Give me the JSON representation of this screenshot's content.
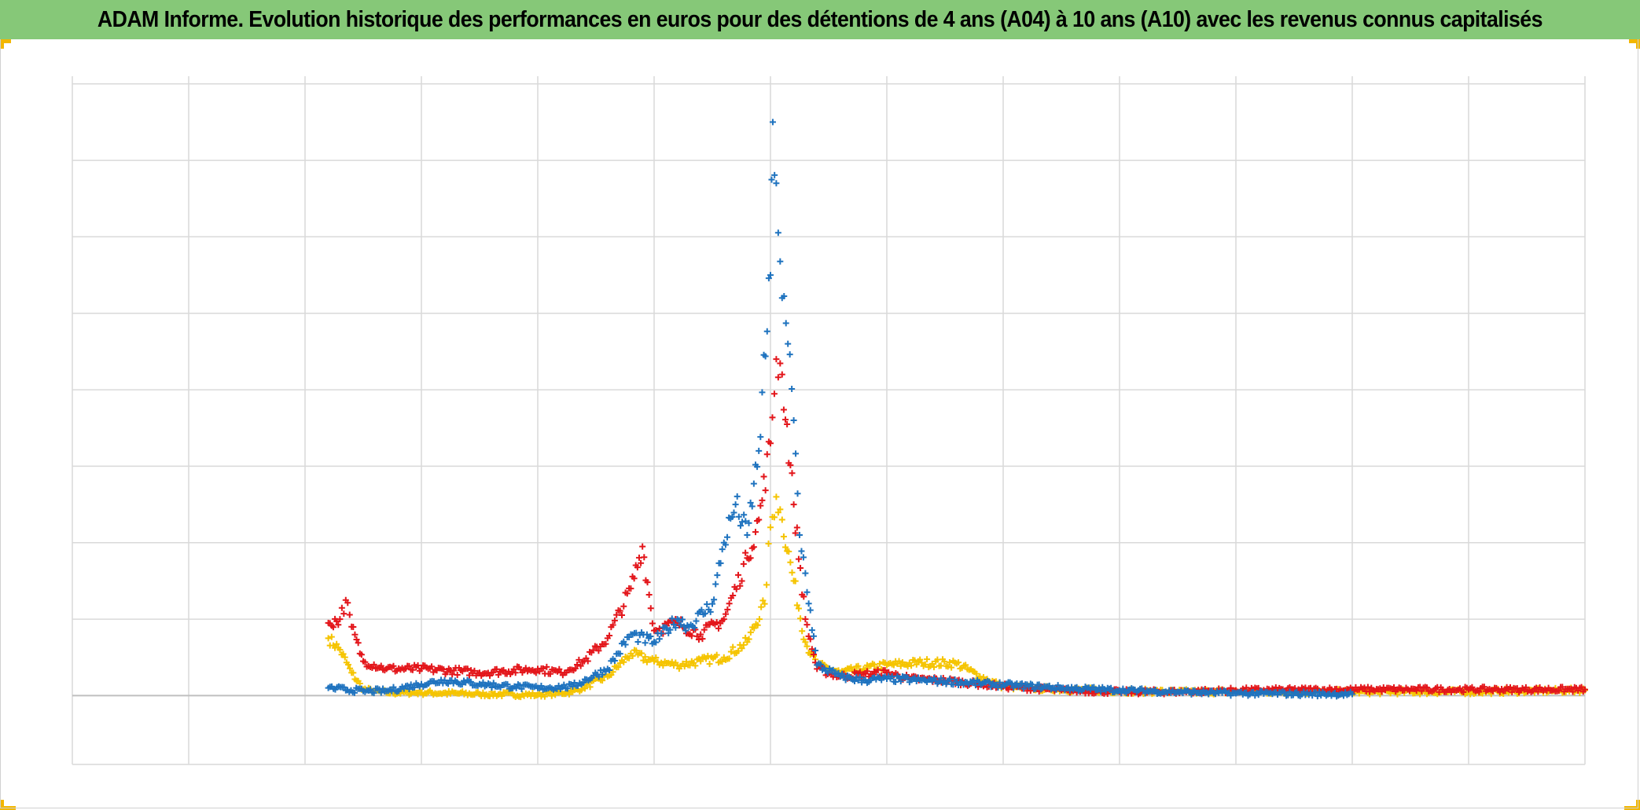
{
  "header": {
    "title": "ADAM Informe. Evolution historique des performances en euros pour des détentions de 4 ans (A04) à 10 ans (A10) avec les revenus connus capitalisés"
  },
  "colors": {
    "title_background": "#86c878",
    "accent_corners": "#f2b700",
    "gridline": "#d9d9d9",
    "zero_line": "#bfbfbf"
  },
  "chart_data": {
    "type": "scatter",
    "title": "ADAM Informe. Evolution historique des performances en euros pour des détentions de 4 ans (A04) à 10 ans (A10) avec les revenus connus capitalisés",
    "marker": "plus",
    "grid": true,
    "legend": "none",
    "axis_labels_visible": false,
    "x_range": [
      0,
      13
    ],
    "y_range": [
      -0.9,
      8.1
    ],
    "x_gridlines": [
      0,
      1,
      2,
      3,
      4,
      5,
      6,
      7,
      8,
      9,
      10,
      11,
      12,
      13
    ],
    "y_gridlines": [
      -0.9,
      0,
      1,
      2,
      3,
      4,
      5,
      6,
      7,
      8
    ],
    "series": [
      {
        "color": "#f5c400",
        "points": [
          [
            2.2,
            0.75
          ],
          [
            2.3,
            0.6
          ],
          [
            2.4,
            0.3
          ],
          [
            2.5,
            0.08
          ],
          [
            2.7,
            0.04
          ],
          [
            3.0,
            0.04
          ],
          [
            3.5,
            0.02
          ],
          [
            4.0,
            0.01
          ],
          [
            4.3,
            0.05
          ],
          [
            4.6,
            0.25
          ],
          [
            4.8,
            0.55
          ],
          [
            5.0,
            0.45
          ],
          [
            5.2,
            0.4
          ],
          [
            5.4,
            0.45
          ],
          [
            5.6,
            0.5
          ],
          [
            5.8,
            0.7
          ],
          [
            5.95,
            1.2
          ],
          [
            6.0,
            2.2
          ],
          [
            6.05,
            2.6
          ],
          [
            6.1,
            2.3
          ],
          [
            6.2,
            1.5
          ],
          [
            6.3,
            0.7
          ],
          [
            6.4,
            0.4
          ],
          [
            6.6,
            0.3
          ],
          [
            6.8,
            0.35
          ],
          [
            7.0,
            0.4
          ],
          [
            7.3,
            0.43
          ],
          [
            7.6,
            0.42
          ],
          [
            7.8,
            0.25
          ],
          [
            8.0,
            0.12
          ],
          [
            8.5,
            0.08
          ],
          [
            9.0,
            0.06
          ],
          [
            9.5,
            0.05
          ],
          [
            10.0,
            0.05
          ],
          [
            11.0,
            0.05
          ],
          [
            12.0,
            0.05
          ],
          [
            13.0,
            0.07
          ]
        ]
      },
      {
        "color": "#e3161b",
        "points": [
          [
            2.2,
            0.95
          ],
          [
            2.3,
            1.0
          ],
          [
            2.35,
            1.25
          ],
          [
            2.4,
            0.9
          ],
          [
            2.5,
            0.45
          ],
          [
            2.7,
            0.35
          ],
          [
            3.0,
            0.35
          ],
          [
            3.5,
            0.3
          ],
          [
            4.0,
            0.35
          ],
          [
            4.2,
            0.3
          ],
          [
            4.4,
            0.45
          ],
          [
            4.6,
            0.75
          ],
          [
            4.8,
            1.4
          ],
          [
            4.9,
            1.95
          ],
          [
            5.0,
            0.85
          ],
          [
            5.2,
            0.95
          ],
          [
            5.4,
            0.8
          ],
          [
            5.6,
            1.0
          ],
          [
            5.8,
            1.8
          ],
          [
            5.9,
            2.3
          ],
          [
            6.0,
            3.3
          ],
          [
            6.05,
            4.4
          ],
          [
            6.1,
            4.2
          ],
          [
            6.2,
            2.5
          ],
          [
            6.3,
            1.0
          ],
          [
            6.4,
            0.35
          ],
          [
            6.6,
            0.25
          ],
          [
            6.8,
            0.28
          ],
          [
            7.0,
            0.3
          ],
          [
            7.2,
            0.22
          ],
          [
            7.5,
            0.2
          ],
          [
            7.8,
            0.15
          ],
          [
            8.0,
            0.12
          ],
          [
            8.5,
            0.07
          ],
          [
            9.0,
            0.05
          ],
          [
            9.5,
            0.05
          ],
          [
            10.0,
            0.07
          ],
          [
            11.0,
            0.08
          ],
          [
            12.0,
            0.08
          ],
          [
            13.0,
            0.08
          ]
        ]
      },
      {
        "color": "#1f73bf",
        "points": [
          [
            2.2,
            0.1
          ],
          [
            2.5,
            0.06
          ],
          [
            2.7,
            0.06
          ],
          [
            3.0,
            0.15
          ],
          [
            3.2,
            0.2
          ],
          [
            3.5,
            0.15
          ],
          [
            3.8,
            0.12
          ],
          [
            4.0,
            0.1
          ],
          [
            4.3,
            0.12
          ],
          [
            4.6,
            0.35
          ],
          [
            4.8,
            0.8
          ],
          [
            5.0,
            0.7
          ],
          [
            5.2,
            1.0
          ],
          [
            5.3,
            0.9
          ],
          [
            5.5,
            1.2
          ],
          [
            5.6,
            2.0
          ],
          [
            5.7,
            2.5
          ],
          [
            5.8,
            2.1
          ],
          [
            5.9,
            3.2
          ],
          [
            6.0,
            5.5
          ],
          [
            6.02,
            7.5
          ],
          [
            6.05,
            6.7
          ],
          [
            6.1,
            5.2
          ],
          [
            6.15,
            4.6
          ],
          [
            6.2,
            3.6
          ],
          [
            6.25,
            2.1
          ],
          [
            6.3,
            1.6
          ],
          [
            6.4,
            0.4
          ],
          [
            6.6,
            0.25
          ],
          [
            6.8,
            0.2
          ],
          [
            7.0,
            0.22
          ],
          [
            7.3,
            0.2
          ],
          [
            7.6,
            0.18
          ],
          [
            8.0,
            0.14
          ],
          [
            8.5,
            0.1
          ],
          [
            9.0,
            0.07
          ],
          [
            9.5,
            0.05
          ],
          [
            10.0,
            0.03
          ],
          [
            11.0,
            0.02
          ]
        ]
      }
    ]
  }
}
